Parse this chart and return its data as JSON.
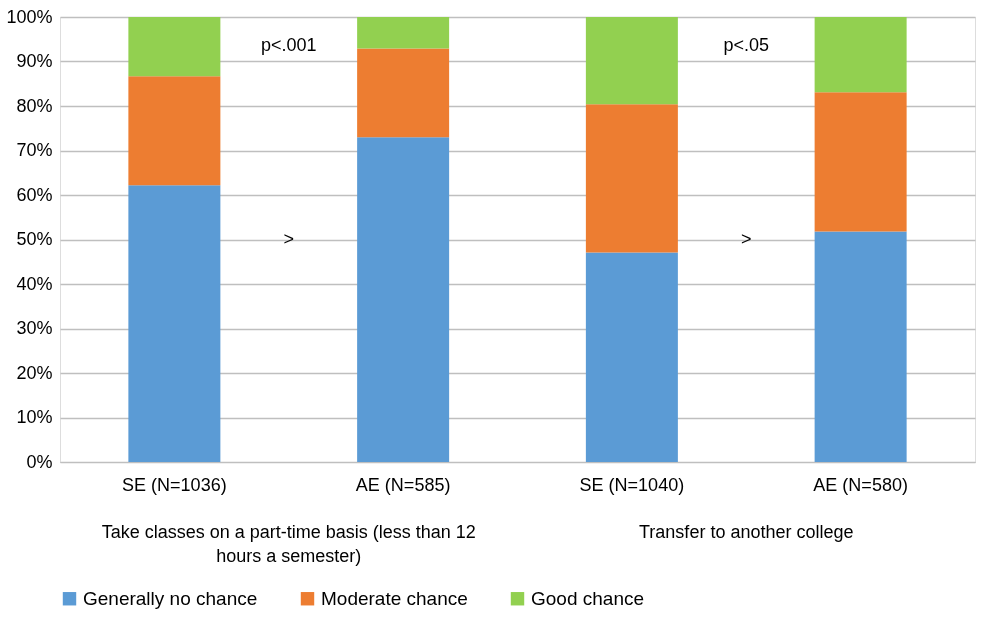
{
  "chart_data": {
    "type": "bar",
    "stacked": true,
    "categories": [
      "SE (N=1036)",
      "AE (N=585)",
      "SE (N=1040)",
      "AE (N=580)"
    ],
    "series": [
      {
        "name": "Generally no chance",
        "color": "#5b9bd5",
        "values": [
          62.2,
          73.0,
          47.1,
          51.8
        ]
      },
      {
        "name": "Moderate chance",
        "color": "#ed7d31",
        "values": [
          24.5,
          19.9,
          33.3,
          31.3
        ]
      },
      {
        "name": "Good chance",
        "color": "#92d050",
        "values": [
          13.3,
          7.1,
          19.6,
          16.9
        ]
      }
    ],
    "ylim": [
      0,
      100
    ],
    "yticks": [
      {
        "value": 0,
        "label": "0%"
      },
      {
        "value": 10,
        "label": "10%"
      },
      {
        "value": 20,
        "label": "20%"
      },
      {
        "value": 30,
        "label": "30%"
      },
      {
        "value": 40,
        "label": "40%"
      },
      {
        "value": 50,
        "label": "50%"
      },
      {
        "value": 60,
        "label": "60%"
      },
      {
        "value": 70,
        "label": "70%"
      },
      {
        "value": 80,
        "label": "80%"
      },
      {
        "value": 90,
        "label": "90%"
      },
      {
        "value": 100,
        "label": "100%"
      }
    ],
    "annotations": [
      "p<.001",
      "p<.05",
      ">",
      ">",
      "Take classes on a part-time basis (less than 12 hours a semester)",
      "Transfer to another college"
    ],
    "grid": "y",
    "legend": "bottom"
  }
}
